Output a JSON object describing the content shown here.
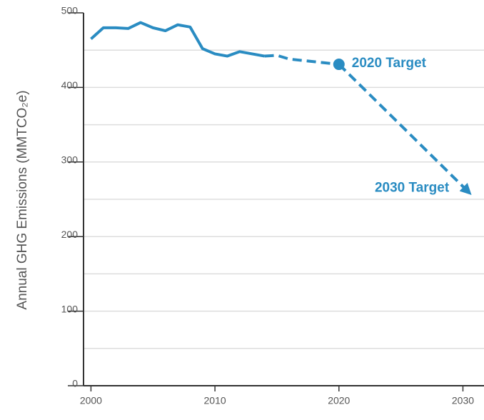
{
  "chart_data": {
    "type": "line",
    "ylabel": "Annual GHG Emissions (MMTCO₂e)",
    "xlim": [
      1999.4,
      2031.7
    ],
    "xticks": [
      2000,
      2010,
      2020,
      2030
    ],
    "ylim": [
      0,
      500
    ],
    "yticks": [
      0,
      100,
      200,
      300,
      400,
      500
    ],
    "minor_yticks": [
      50,
      150,
      250,
      350,
      450
    ],
    "grid": true,
    "series": [
      {
        "color": "#2a8cc2",
        "style": "solid",
        "x": [
          2000,
          2001,
          2002,
          2003,
          2004,
          2005,
          2006,
          2007,
          2008,
          2009,
          2010,
          2011,
          2012,
          2013,
          2014
        ],
        "values": [
          465,
          480,
          480,
          479,
          487,
          480,
          476,
          484,
          481,
          452,
          445,
          442,
          448,
          445,
          442
        ]
      },
      {
        "color": "#2a8cc2",
        "style": "dashed",
        "x": [
          2014,
          2015,
          2016,
          2020
        ],
        "values": [
          442,
          443,
          438,
          431
        ]
      },
      {
        "color": "#2a8cc2",
        "style": "dashed-arrow",
        "x": [
          2020,
          2030.5
        ],
        "values": [
          431,
          259
        ]
      }
    ],
    "annotations": [
      "2020 Target",
      "2030 Target"
    ]
  }
}
